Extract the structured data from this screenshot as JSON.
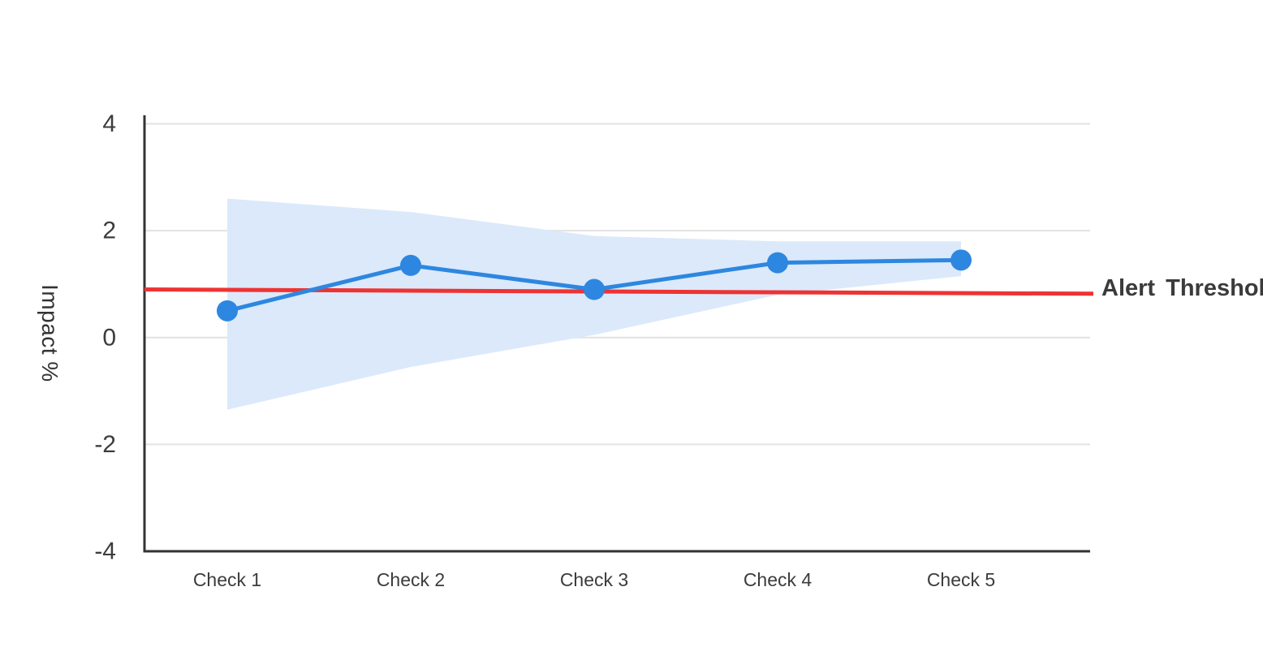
{
  "chart_data": {
    "type": "line",
    "title": "",
    "xlabel": "",
    "ylabel": "Impact %",
    "categories": [
      "Check 1",
      "Check 2",
      "Check 3",
      "Check 4",
      "Check 5"
    ],
    "series": [
      {
        "name": "Impact",
        "values": [
          0.5,
          1.35,
          0.9,
          1.4,
          1.45
        ]
      }
    ],
    "confidence_band": {
      "upper": [
        2.6,
        2.35,
        1.9,
        1.8,
        1.8
      ],
      "lower": [
        -1.35,
        -0.55,
        0.05,
        0.8,
        1.15
      ]
    },
    "threshold": {
      "label": "Alert Threshold",
      "start_value": 0.9,
      "end_value": 0.82
    },
    "yticks": [
      4,
      2,
      0,
      -2,
      -4
    ],
    "ylim": [
      -4,
      4
    ],
    "grid": true,
    "legend_position": "right-of-threshold-line",
    "colors": {
      "line": "#2D87E0",
      "marker": "#2D87E0",
      "band": "#DBE9FB",
      "threshold": "#EE3333",
      "grid": "#E2E2E2",
      "axis": "#333333",
      "text": "#3C3C3C"
    }
  }
}
